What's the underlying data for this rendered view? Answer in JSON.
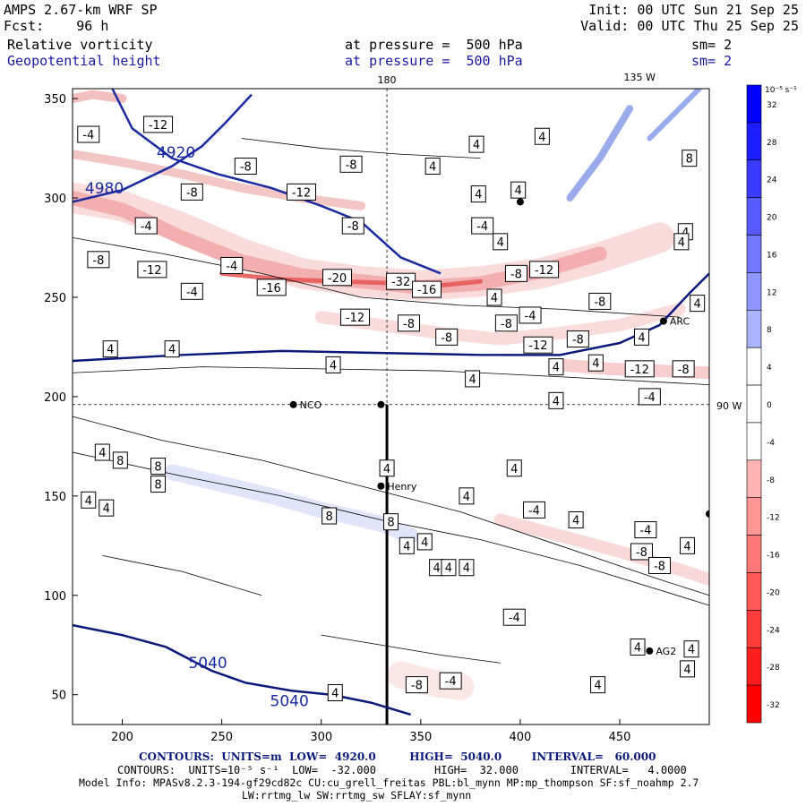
{
  "header": {
    "model": "AMPS 2.67-km WRF SP",
    "fcst": "Fcst:    96 h",
    "init": "Init: 00 UTC Sun 21 Sep 25",
    "valid": "Valid: 00 UTC Thu 25 Sep 25",
    "field1_name": "Relative vorticity",
    "field1_level": "at pressure =  500 hPa",
    "field1_sm": "sm= 2",
    "field2_name": "Geopotential height",
    "field2_level": "at pressure =  500 hPa",
    "field2_sm": "sm= 2"
  },
  "chart_data": {
    "type": "heatmap",
    "title": "Relative vorticity / Geopotential height at 500 hPa",
    "xlim": [
      175,
      495
    ],
    "ylim": [
      35,
      355
    ],
    "x_ticks": [
      200,
      250,
      300,
      350,
      400,
      450
    ],
    "y_ticks": [
      50,
      100,
      150,
      200,
      250,
      300,
      350
    ],
    "top_labels": {
      "lon_180": "180",
      "lon_135w": "135 W"
    },
    "right_label_90w": "90 W",
    "colorbar": {
      "unit": "10⁻⁵ s⁻¹",
      "levels": [
        32,
        28,
        24,
        20,
        16,
        12,
        8,
        4,
        0,
        -4,
        -8,
        -12,
        -16,
        -20,
        -24,
        -28,
        -32
      ],
      "colors_high": "#0000ff",
      "colors_low": "#ff0000"
    },
    "height_contours": [
      {
        "label": "4920",
        "color": "#1a2aa0",
        "points": [
          [
            195,
            355
          ],
          [
            205,
            335
          ],
          [
            225,
            320
          ],
          [
            248,
            312
          ],
          [
            275,
            305
          ],
          [
            300,
            296
          ],
          [
            320,
            288
          ],
          [
            340,
            270
          ],
          [
            360,
            262
          ]
        ]
      },
      {
        "label": "4980",
        "color": "#1a2aa0",
        "points": [
          [
            175,
            298
          ],
          [
            200,
            304
          ],
          [
            225,
            316
          ],
          [
            240,
            326
          ],
          [
            252,
            338
          ],
          [
            265,
            352
          ]
        ]
      },
      {
        "label": "5040",
        "color": "#0b1a7a",
        "points": [
          [
            175,
            85
          ],
          [
            200,
            80
          ],
          [
            222,
            74
          ],
          [
            245,
            62
          ],
          [
            262,
            56
          ],
          [
            285,
            52
          ],
          [
            305,
            50
          ],
          [
            325,
            46
          ],
          [
            345,
            40
          ]
        ]
      },
      {
        "label": "",
        "color": "#0b1a7a",
        "points": [
          [
            175,
            218
          ],
          [
            230,
            221
          ],
          [
            280,
            223
          ],
          [
            330,
            222
          ],
          [
            380,
            221
          ],
          [
            420,
            221
          ],
          [
            450,
            227
          ],
          [
            470,
            236
          ],
          [
            485,
            252
          ],
          [
            495,
            262
          ]
        ]
      }
    ],
    "vorticity_contour_labels": [
      {
        "t": "-4",
        "x": 183,
        "y": 332
      },
      {
        "t": "-12",
        "x": 218,
        "y": 337
      },
      {
        "t": "-8",
        "x": 262,
        "y": 316
      },
      {
        "t": "-8",
        "x": 235,
        "y": 303
      },
      {
        "t": "-12",
        "x": 290,
        "y": 303
      },
      {
        "t": "-8",
        "x": 315,
        "y": 317
      },
      {
        "t": "-4",
        "x": 212,
        "y": 286
      },
      {
        "t": "-8",
        "x": 316,
        "y": 286
      },
      {
        "t": "-4",
        "x": 381,
        "y": 286
      },
      {
        "t": "-8",
        "x": 188,
        "y": 269
      },
      {
        "t": "-12",
        "x": 215,
        "y": 264
      },
      {
        "t": "-4",
        "x": 255,
        "y": 266
      },
      {
        "t": "-20",
        "x": 308,
        "y": 260
      },
      {
        "t": "-32",
        "x": 340,
        "y": 258
      },
      {
        "t": "-16",
        "x": 275,
        "y": 255
      },
      {
        "t": "-4",
        "x": 235,
        "y": 253
      },
      {
        "t": "-16",
        "x": 353,
        "y": 254
      },
      {
        "t": "-12",
        "x": 317,
        "y": 240
      },
      {
        "t": "-8",
        "x": 344,
        "y": 237
      },
      {
        "t": "-8",
        "x": 363,
        "y": 230
      },
      {
        "t": "-8",
        "x": 393,
        "y": 237
      },
      {
        "t": "-4",
        "x": 405,
        "y": 241
      },
      {
        "t": "-12",
        "x": 409,
        "y": 226
      },
      {
        "t": "-8",
        "x": 429,
        "y": 229
      },
      {
        "t": "-8",
        "x": 440,
        "y": 248
      },
      {
        "t": "-12",
        "x": 460,
        "y": 214
      },
      {
        "t": "-8",
        "x": 482,
        "y": 214
      },
      {
        "t": "-4",
        "x": 465,
        "y": 200
      },
      {
        "t": "4",
        "x": 194,
        "y": 224
      },
      {
        "t": "4",
        "x": 225,
        "y": 224
      },
      {
        "t": "4",
        "x": 306,
        "y": 216
      },
      {
        "t": "4",
        "x": 376,
        "y": 209
      },
      {
        "t": "4",
        "x": 418,
        "y": 215
      },
      {
        "t": "4",
        "x": 418,
        "y": 198
      },
      {
        "t": "4",
        "x": 438,
        "y": 217
      },
      {
        "t": "4",
        "x": 461,
        "y": 230
      },
      {
        "t": "-8",
        "x": 398,
        "y": 262
      },
      {
        "t": "-12",
        "x": 412,
        "y": 264
      },
      {
        "t": "4",
        "x": 378,
        "y": 327
      },
      {
        "t": "4",
        "x": 356,
        "y": 316
      },
      {
        "t": "4",
        "x": 379,
        "y": 302
      },
      {
        "t": "4",
        "x": 399,
        "y": 304
      },
      {
        "t": "4",
        "x": 390,
        "y": 278
      },
      {
        "t": "4",
        "x": 387,
        "y": 250
      },
      {
        "t": "4",
        "x": 411,
        "y": 331
      },
      {
        "t": "8",
        "x": 485,
        "y": 320
      },
      {
        "t": "4",
        "x": 483,
        "y": 283
      },
      {
        "t": "4",
        "x": 481,
        "y": 278
      },
      {
        "t": "4",
        "x": 489,
        "y": 247
      },
      {
        "t": "4",
        "x": 373,
        "y": 150
      },
      {
        "t": "4",
        "x": 190,
        "y": 172
      },
      {
        "t": "8",
        "x": 199,
        "y": 168
      },
      {
        "t": "8",
        "x": 218,
        "y": 165
      },
      {
        "t": "8",
        "x": 218,
        "y": 156
      },
      {
        "t": "4",
        "x": 183,
        "y": 148
      },
      {
        "t": "4",
        "x": 192,
        "y": 144
      },
      {
        "t": "8",
        "x": 304,
        "y": 140
      },
      {
        "t": "8",
        "x": 335,
        "y": 137
      },
      {
        "t": "4",
        "x": 343,
        "y": 125
      },
      {
        "t": "4",
        "x": 352,
        "y": 127
      },
      {
        "t": "4",
        "x": 358,
        "y": 114
      },
      {
        "t": "4",
        "x": 364,
        "y": 114
      },
      {
        "t": "4",
        "x": 373,
        "y": 114
      },
      {
        "t": "4",
        "x": 333,
        "y": 164
      },
      {
        "t": "4",
        "x": 397,
        "y": 164
      },
      {
        "t": "-4",
        "x": 407,
        "y": 143
      },
      {
        "t": "4",
        "x": 428,
        "y": 138
      },
      {
        "t": "-4",
        "x": 463,
        "y": 133
      },
      {
        "t": "4",
        "x": 484,
        "y": 125
      },
      {
        "t": "-8",
        "x": 461,
        "y": 122
      },
      {
        "t": "-8",
        "x": 470,
        "y": 115
      },
      {
        "t": "-4",
        "x": 397,
        "y": 89
      },
      {
        "t": "4",
        "x": 459,
        "y": 74
      },
      {
        "t": "4",
        "x": 486,
        "y": 73
      },
      {
        "t": "4",
        "x": 484,
        "y": 63
      },
      {
        "t": "4",
        "x": 439,
        "y": 55
      },
      {
        "t": "-8",
        "x": 348,
        "y": 55
      },
      {
        "t": "-4",
        "x": 365,
        "y": 57
      },
      {
        "t": "4",
        "x": 307,
        "y": 51
      }
    ],
    "height_labels": [
      {
        "t": "4920",
        "x": 227,
        "y": 323
      },
      {
        "t": "4980",
        "x": 191,
        "y": 305
      },
      {
        "t": "5040",
        "x": 243,
        "y": 66
      },
      {
        "t": "5040",
        "x": 284,
        "y": 47
      }
    ],
    "stations": [
      {
        "name": "NCO",
        "x": 286,
        "y": 196
      },
      {
        "name": "Henry",
        "x": 330,
        "y": 155
      },
      {
        "name": "ARC",
        "x": 472,
        "y": 238
      },
      {
        "name": "AG2",
        "x": 465,
        "y": 72
      },
      {
        "name": "",
        "x": 400,
        "y": 298
      },
      {
        "name": "",
        "x": 495,
        "y": 141
      },
      {
        "name": "",
        "x": 330,
        "y": 196
      }
    ]
  },
  "footer": {
    "line1": "CONTOURS:  UNITS=m  LOW=  4920.0         HIGH=  5040.0        INTERVAL=   60.000",
    "line2": "CONTOURS:  UNITS=10⁻⁵ s⁻¹  LOW=  -32.000         HIGH=  32.000        INTERVAL=   4.0000",
    "line3": "Model Info: MPASv8.2.3-194-gf29cd82c CU:cu_grell_freitas PBL:bl_mynn MP:mp_thompson SF:sf_noahmp 2.7",
    "line4": "LW:rrtmg_lw SW:rrtmg_sw SFLAY:sf_mynn"
  }
}
